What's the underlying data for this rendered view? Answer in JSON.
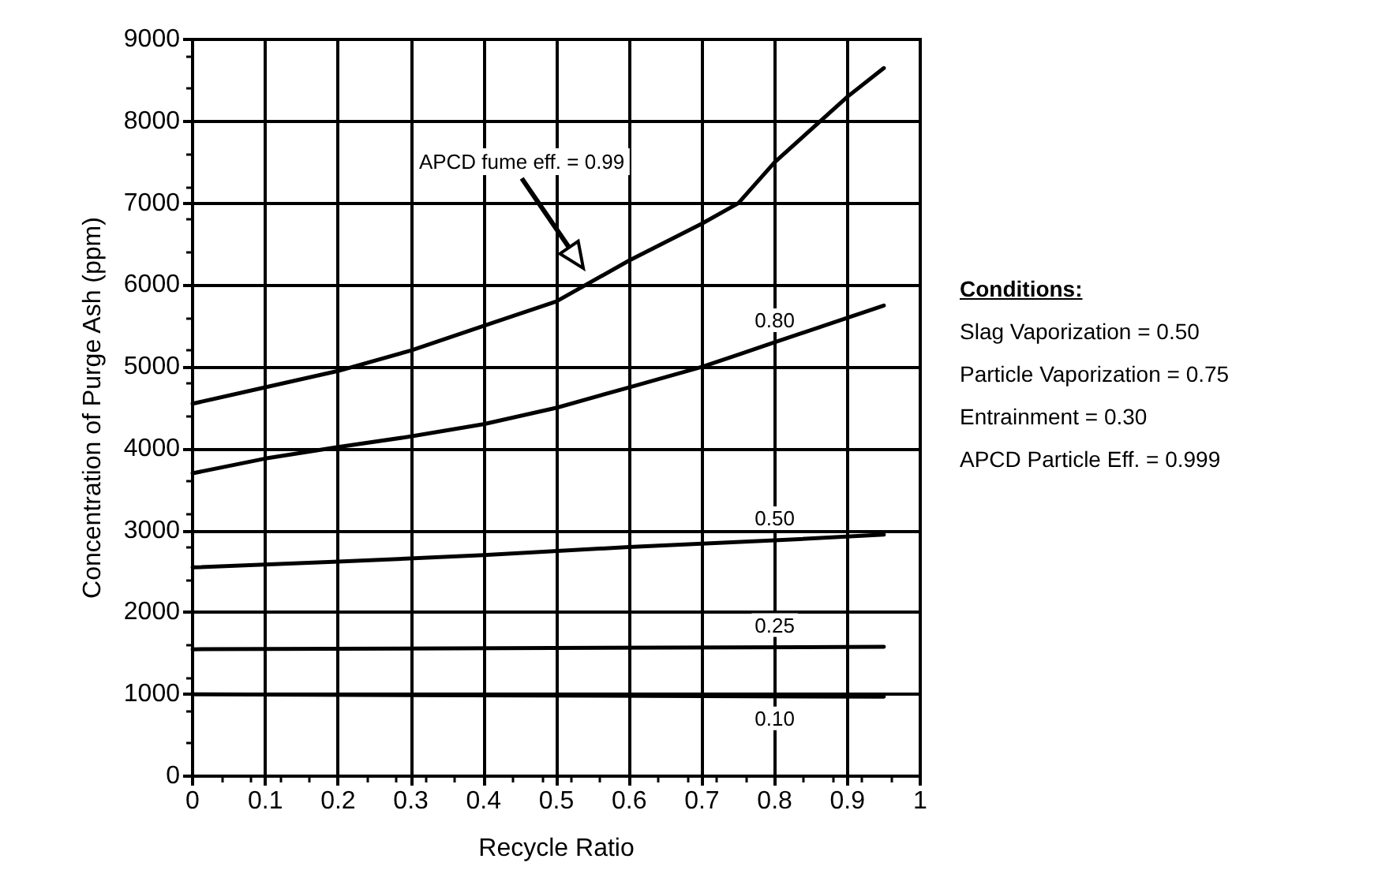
{
  "chart_data": {
    "type": "line",
    "xlabel": "Recycle Ratio",
    "ylabel": "Concentration of Purge Ash (ppm)",
    "x": [
      0,
      0.1,
      0.2,
      0.3,
      0.4,
      0.5,
      0.6,
      0.7,
      0.75,
      0.8,
      0.9,
      0.95
    ],
    "series": [
      {
        "color": "#000000",
        "values": [
          4550,
          4750,
          4950,
          5200,
          5500,
          5800,
          6300,
          6750,
          7000,
          7500,
          8300,
          8650
        ]
      },
      {
        "name": "0.80",
        "color": "#000000",
        "values": [
          3700,
          3880,
          4020,
          4150,
          4300,
          4500,
          4750,
          5000,
          5150,
          5300,
          5600,
          5750
        ]
      },
      {
        "name": "0.50",
        "color": "#000000",
        "x": [
          0,
          0.2,
          0.4,
          0.6,
          0.8,
          0.95
        ],
        "values": [
          2550,
          2620,
          2700,
          2800,
          2880,
          2950
        ]
      },
      {
        "name": "0.25",
        "color": "#000000",
        "x": [
          0,
          0.95
        ],
        "values": [
          1550,
          1580
        ]
      },
      {
        "name": "0.10",
        "color": "#000000",
        "x": [
          0,
          0.95
        ],
        "values": [
          1000,
          970
        ]
      }
    ],
    "xlim": [
      0,
      1
    ],
    "xticks": [
      0,
      0.1,
      0.2,
      0.3,
      0.4,
      0.5,
      0.6,
      0.7,
      0.8,
      0.9,
      1
    ],
    "ylim": [
      0,
      9000
    ],
    "yticks": [
      0,
      1000,
      2000,
      3000,
      4000,
      5000,
      6000,
      7000,
      8000,
      9000
    ],
    "grid": true,
    "legend": false,
    "marker": "none",
    "line_style": "solid",
    "annotations": [
      "APCD fume eff. = 0.99",
      "Conditions:",
      "Slag Vaporization = 0.50",
      "Particle Vaporization = 0.75",
      "Entrainment = 0.30",
      "APCD Particle Eff. = 0.999"
    ]
  }
}
